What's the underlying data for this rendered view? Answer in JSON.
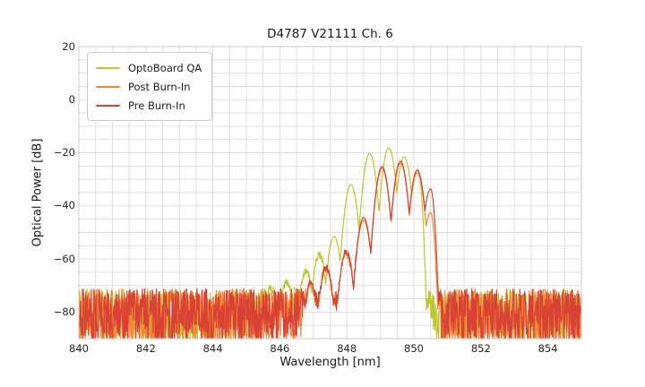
{
  "chart_data": {
    "type": "line",
    "title": "D4787 V21111 Ch. 6",
    "xlabel": "Wavelength [nm]",
    "ylabel": "Optical Power [dB]",
    "xlim": [
      840,
      855
    ],
    "ylim": [
      -90,
      20
    ],
    "xticks": [
      [
        840,
        "840"
      ],
      [
        842,
        "842"
      ],
      [
        844,
        "844"
      ],
      [
        846,
        "846"
      ],
      [
        848,
        "848"
      ],
      [
        850,
        "850"
      ],
      [
        852,
        "852"
      ],
      [
        854,
        "854"
      ]
    ],
    "yticks": [
      [
        20,
        "20"
      ],
      [
        0,
        "0"
      ],
      [
        -20,
        "−20"
      ],
      [
        -40,
        "−40"
      ],
      [
        -60,
        "−60"
      ],
      [
        -80,
        "−80"
      ]
    ],
    "grid": {
      "on": true,
      "x_step": 0.5,
      "y_step": 5,
      "color": "#dcdcdc",
      "spine_color": "#c9c9c9"
    },
    "legend": {
      "position": "upper left",
      "entries": [
        "OptoBoard QA",
        "Post Burn-In",
        "Pre Burn-In"
      ]
    },
    "noise_floor": {
      "top_dB": -72.5,
      "bottom_dB": -92,
      "in_band_floor_dB": -71.5,
      "in_band_spread_dB": 7
    },
    "lobe_shape": {
      "halfwidth_nm": 0.25,
      "depth_dB": 18,
      "edge_halfwidth_nm": 0.15
    },
    "series": [
      {
        "name": "OptoBoard QA",
        "color": "#bdc62b",
        "signal_range_nm": [
          845.4,
          850.5
        ],
        "modes_nm_dB": [
          [
            845.7,
            -71
          ],
          [
            846.2,
            -68.5
          ],
          [
            846.78,
            -64.5
          ],
          [
            847.18,
            -58.5
          ],
          [
            847.62,
            -51.5
          ],
          [
            848.12,
            -32
          ],
          [
            848.68,
            -20.3
          ],
          [
            849.25,
            -18.2
          ],
          [
            849.71,
            -21.5
          ],
          [
            850.12,
            -26.3
          ]
        ]
      },
      {
        "name": "Post Burn-In",
        "color": "#f4862f",
        "signal_range_nm": [
          846.68,
          850.74
        ],
        "modes_nm_dB": [
          [
            846.9,
            -69.3
          ],
          [
            847.38,
            -63.8
          ],
          [
            847.98,
            -57.9
          ],
          [
            848.5,
            -45.4
          ],
          [
            849.05,
            -25.9
          ],
          [
            849.6,
            -23.9
          ],
          [
            850.1,
            -27.6
          ],
          [
            850.5,
            -42.5
          ]
        ]
      },
      {
        "name": "Pre Burn-In",
        "color": "#d84134",
        "signal_range_nm": [
          846.68,
          850.78
        ],
        "modes_nm_dB": [
          [
            846.9,
            -68.5
          ],
          [
            847.38,
            -63
          ],
          [
            847.98,
            -57.2
          ],
          [
            848.5,
            -44.4
          ],
          [
            849.05,
            -25.2
          ],
          [
            849.6,
            -23.2
          ],
          [
            850.1,
            -26.6
          ],
          [
            850.5,
            -33.6
          ]
        ]
      }
    ]
  }
}
